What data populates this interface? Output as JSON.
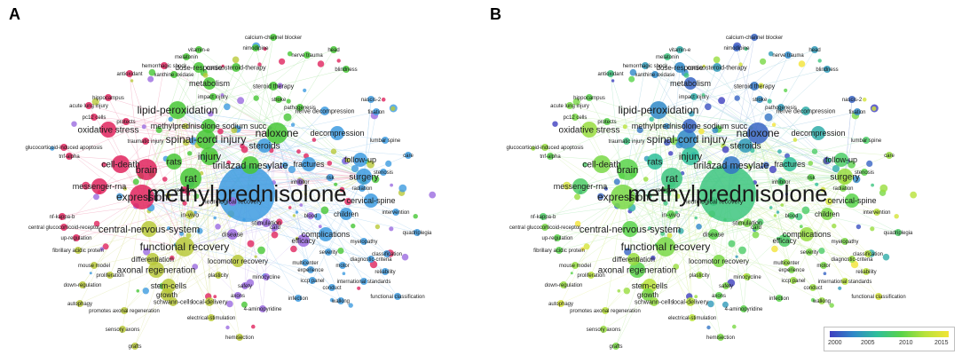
{
  "panels": [
    {
      "letter": "A",
      "coloring": "cluster"
    },
    {
      "letter": "B",
      "coloring": "year"
    }
  ],
  "year_scale": {
    "ticks": [
      "2000",
      "2005",
      "2010",
      "2015"
    ]
  },
  "colors": {
    "cluster_red": "#e0245e",
    "cluster_green": "#46c735",
    "cluster_lime": "#b9c93a",
    "cluster_blue": "#3d9be0",
    "cluster_purple": "#9b6be0",
    "edge": "#c8d8e8"
  },
  "keywords": [
    {
      "text": "methylprednisolone",
      "cluster": "blue",
      "year": 2008
    },
    {
      "text": "naloxone",
      "cluster": "green",
      "year": 2002
    },
    {
      "text": "spinal-cord injury",
      "cluster": "green",
      "year": 2004
    },
    {
      "text": "tirilazad mesylate",
      "cluster": "green",
      "year": 2003
    },
    {
      "text": "lipid-peroxidation",
      "cluster": "green",
      "year": 2004
    },
    {
      "text": "methylprednisolone sodium succ",
      "cluster": "green",
      "year": 2002
    },
    {
      "text": "expression",
      "cluster": "red",
      "year": 2011
    },
    {
      "text": "brain",
      "cluster": "red",
      "year": 2010
    },
    {
      "text": "cell-death",
      "cluster": "red",
      "year": 2011
    },
    {
      "text": "oxidative stress",
      "cluster": "red",
      "year": 2012
    },
    {
      "text": "messenger-rna",
      "cluster": "red",
      "year": 2009
    },
    {
      "text": "rat",
      "cluster": "green",
      "year": 2008
    },
    {
      "text": "rats",
      "cluster": "green",
      "year": 2007
    },
    {
      "text": "injury",
      "cluster": "green",
      "year": 2007
    },
    {
      "text": "steroids",
      "cluster": "blue",
      "year": 2005
    },
    {
      "text": "fractures",
      "cluster": "blue",
      "year": 2007
    },
    {
      "text": "decompression",
      "cluster": "blue",
      "year": 2006
    },
    {
      "text": "follow-up",
      "cluster": "blue",
      "year": 2009
    },
    {
      "text": "surgery",
      "cluster": "blue",
      "year": 2012
    },
    {
      "text": "cervical-spine",
      "cluster": "blue",
      "year": 2010
    },
    {
      "text": "children",
      "cluster": "blue",
      "year": 2011
    },
    {
      "text": "functional recovery",
      "cluster": "lime",
      "year": 2011
    },
    {
      "text": "central-nervous-system",
      "cluster": "lime",
      "year": 2010
    },
    {
      "text": "axonal regeneration",
      "cluster": "lime",
      "year": 2010
    },
    {
      "text": "differentiation",
      "cluster": "lime",
      "year": 2012
    },
    {
      "text": "locomotor recovery",
      "cluster": "lime",
      "year": 2011
    },
    {
      "text": "stem-cells",
      "cluster": "lime",
      "year": 2013
    },
    {
      "text": "growth",
      "cluster": "lime",
      "year": 2011
    },
    {
      "text": "schwann-cells",
      "cluster": "lime",
      "year": 2012
    },
    {
      "text": "local-delivery",
      "cluster": "lime",
      "year": 2013
    },
    {
      "text": "complications",
      "cluster": "blue",
      "year": 2012
    },
    {
      "text": "efficacy",
      "cluster": "purple",
      "year": 2009
    },
    {
      "text": "disease",
      "cluster": "purple",
      "year": 2010
    },
    {
      "text": "in-vivo",
      "cluster": "lime",
      "year": 2010
    },
    {
      "text": "stimulation",
      "cluster": "purple",
      "year": 2011
    },
    {
      "text": "neurological recovery",
      "cluster": "purple",
      "year": 2008
    },
    {
      "text": "metabolism",
      "cluster": "green",
      "year": 2002
    },
    {
      "text": "dose-response",
      "cluster": "green",
      "year": 2004
    },
    {
      "text": "corticosteroid-therapy",
      "cluster": "green",
      "year": 2005
    },
    {
      "text": "steroid therapy",
      "cluster": "green",
      "year": 2003
    },
    {
      "text": "nerve decompression",
      "cluster": "blue",
      "year": 2006
    },
    {
      "text": "nimodipine",
      "cluster": "green",
      "year": 2002
    },
    {
      "text": "calcium-channel blocker",
      "cluster": "green",
      "year": 2002
    },
    {
      "text": "melatonin",
      "cluster": "green",
      "year": 2008
    },
    {
      "text": "vitamin-e",
      "cluster": "green",
      "year": 2006
    },
    {
      "text": "hemorrhagic shock",
      "cluster": "red",
      "year": 2005
    },
    {
      "text": "xanthine oxidase",
      "cluster": "green",
      "year": 2004
    },
    {
      "text": "antioxidant",
      "cluster": "red",
      "year": 2008
    },
    {
      "text": "hippocampus",
      "cluster": "red",
      "year": 2010
    },
    {
      "text": "acute lung injury",
      "cluster": "red",
      "year": 2011
    },
    {
      "text": "pc12 cells",
      "cluster": "red",
      "year": 2011
    },
    {
      "text": "glucocorticoid-induced apoptosis",
      "cluster": "red",
      "year": 2012
    },
    {
      "text": "tnf-alpha",
      "cluster": "red",
      "year": 2010
    },
    {
      "text": "nf-kappa-b",
      "cluster": "red",
      "year": 2009
    },
    {
      "text": "central glucocorticoid-receptor",
      "cluster": "red",
      "year": 2011
    },
    {
      "text": "up-regulation",
      "cluster": "red",
      "year": 2010
    },
    {
      "text": "fibrillary acidic protein",
      "cluster": "lime",
      "year": 2010
    },
    {
      "text": "mouse model",
      "cluster": "lime",
      "year": 2012
    },
    {
      "text": "proliferation",
      "cluster": "lime",
      "year": 2013
    },
    {
      "text": "down-regulation",
      "cluster": "lime",
      "year": 2012
    },
    {
      "text": "autophagy",
      "cluster": "lime",
      "year": 2014
    },
    {
      "text": "promotes axonal regeneration",
      "cluster": "lime",
      "year": 2013
    },
    {
      "text": "sensory axons",
      "cluster": "lime",
      "year": 2012
    },
    {
      "text": "grafts",
      "cluster": "lime",
      "year": 2011
    },
    {
      "text": "electrical-stimulation",
      "cluster": "lime",
      "year": 2013
    },
    {
      "text": "hemisection",
      "cluster": "lime",
      "year": 2011
    },
    {
      "text": "4-aminopyridine",
      "cluster": "purple",
      "year": 2010
    },
    {
      "text": "axons",
      "cluster": "purple",
      "year": 2010
    },
    {
      "text": "safety",
      "cluster": "purple",
      "year": 2011
    },
    {
      "text": "minocycline",
      "cluster": "purple",
      "year": 2012
    },
    {
      "text": "plasticity",
      "cluster": "lime",
      "year": 2012
    },
    {
      "text": "multicenter",
      "cluster": "blue",
      "year": 2012
    },
    {
      "text": "experience",
      "cluster": "blue",
      "year": 2011
    },
    {
      "text": "motor",
      "cluster": "blue",
      "year": 2011
    },
    {
      "text": "international standards",
      "cluster": "blue",
      "year": 2013
    },
    {
      "text": "iccp panel",
      "cluster": "blue",
      "year": 2012
    },
    {
      "text": "conduct",
      "cluster": "blue",
      "year": 2012
    },
    {
      "text": "infection",
      "cluster": "blue",
      "year": 2010
    },
    {
      "text": "walking",
      "cluster": "blue",
      "year": 2012
    },
    {
      "text": "functional classification",
      "cluster": "blue",
      "year": 2014
    },
    {
      "text": "reliability",
      "cluster": "blue",
      "year": 2013
    },
    {
      "text": "diagnostic-criteria",
      "cluster": "blue",
      "year": 2012
    },
    {
      "text": "severity",
      "cluster": "blue",
      "year": 2011
    },
    {
      "text": "classification",
      "cluster": "blue",
      "year": 2013
    },
    {
      "text": "myelopathy",
      "cluster": "blue",
      "year": 2011
    },
    {
      "text": "quadriplegia",
      "cluster": "blue",
      "year": 2009
    },
    {
      "text": "intervention",
      "cluster": "blue",
      "year": 2013
    },
    {
      "text": "radiation",
      "cluster": "blue",
      "year": 2011
    },
    {
      "text": "stenosis",
      "cluster": "blue",
      "year": 2010
    },
    {
      "text": "lumbar spine",
      "cluster": "blue",
      "year": 2009
    },
    {
      "text": "care",
      "cluster": "blue",
      "year": 2012
    },
    {
      "text": "nascis-2",
      "cluster": "blue",
      "year": 2002
    },
    {
      "text": "fixation",
      "cluster": "blue",
      "year": 2004
    },
    {
      "text": "blindness",
      "cluster": "green",
      "year": 2005
    },
    {
      "text": "nerve trauma",
      "cluster": "green",
      "year": 2004
    },
    {
      "text": "head",
      "cluster": "green",
      "year": 2005
    },
    {
      "text": "stroke",
      "cluster": "green",
      "year": 2004
    },
    {
      "text": "pathogenesis",
      "cluster": "green",
      "year": 2005
    },
    {
      "text": "protects",
      "cluster": "red",
      "year": 2010
    },
    {
      "text": "receptor",
      "cluster": "red",
      "year": 2009
    },
    {
      "text": "inhibitor",
      "cluster": "purple",
      "year": 2009
    },
    {
      "text": "blood",
      "cluster": "purple",
      "year": 2009
    },
    {
      "text": "card",
      "cluster": "purple",
      "year": 2010
    },
    {
      "text": "impact injury",
      "cluster": "green",
      "year": 2006
    },
    {
      "text": "traumatic injury",
      "cluster": "red",
      "year": 2008
    },
    {
      "text": "risk",
      "cluster": "blue",
      "year": 2010
    }
  ]
}
